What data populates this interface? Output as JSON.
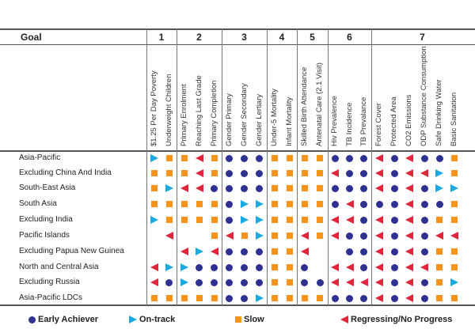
{
  "chart_data": {
    "type": "table",
    "header_label": "Goal",
    "goals": [
      {
        "number": "1",
        "indicators": [
          "$1.25 Per Day Poverty",
          "Underweight Children"
        ]
      },
      {
        "number": "2",
        "indicators": [
          "Primary Enrolment",
          "Reaching Last Grade",
          "Primary Completion"
        ]
      },
      {
        "number": "3",
        "indicators": [
          "Gender Primary",
          "Gender Secondary",
          "Gender Lertiary"
        ]
      },
      {
        "number": "4",
        "indicators": [
          "Under-5 Mortality",
          "Infant Mortality"
        ]
      },
      {
        "number": "5",
        "indicators": [
          "Skilled Birth Attendance",
          "Antenatal Care (2.1 Visit)"
        ]
      },
      {
        "number": "6",
        "indicators": [
          "Hiv Prevalence",
          "TB Incidence",
          "TB Prevalance"
        ]
      },
      {
        "number": "7",
        "indicators": [
          "Forest Cover",
          "Protected Area",
          "CO2 Emissions",
          "ODP Substance Consumption",
          "Safe Drinking Water",
          "Basic Sanitation"
        ]
      }
    ],
    "status_key": {
      "E": "Early Achiever",
      "O": "On-track",
      "S": "Slow",
      "R": "Regressing/No Progress",
      "_": "No data"
    },
    "rows": [
      {
        "region": "Asia-Pacific",
        "status": [
          "O",
          "S",
          "S",
          "R",
          "S",
          "E",
          "E",
          "E",
          "S",
          "S",
          "S",
          "S",
          "E",
          "E",
          "E",
          "R",
          "E",
          "R",
          "E",
          "E",
          "S"
        ]
      },
      {
        "region": "Excluding China And India",
        "status": [
          "S",
          "S",
          "S",
          "R",
          "S",
          "E",
          "E",
          "E",
          "S",
          "S",
          "S",
          "S",
          "R",
          "E",
          "E",
          "R",
          "E",
          "R",
          "R",
          "O",
          "S"
        ]
      },
      {
        "region": "South-East Asia",
        "status": [
          "S",
          "O",
          "R",
          "R",
          "E",
          "E",
          "E",
          "E",
          "S",
          "S",
          "S",
          "S",
          "E",
          "E",
          "E",
          "R",
          "E",
          "R",
          "E",
          "O",
          "O"
        ]
      },
      {
        "region": "South Asia",
        "status": [
          "S",
          "S",
          "S",
          "S",
          "S",
          "E",
          "O",
          "O",
          "S",
          "S",
          "S",
          "S",
          "E",
          "R",
          "E",
          "E",
          "E",
          "R",
          "E",
          "E",
          "S"
        ]
      },
      {
        "region": "Excluding India",
        "status": [
          "O",
          "S",
          "S",
          "S",
          "S",
          "E",
          "O",
          "O",
          "S",
          "S",
          "S",
          "S",
          "R",
          "R",
          "E",
          "R",
          "E",
          "R",
          "E",
          "S",
          "S"
        ]
      },
      {
        "region": "Pacific Islands",
        "status": [
          "_",
          "R",
          "_",
          "_",
          "S",
          "R",
          "S",
          "O",
          "S",
          "S",
          "R",
          "S",
          "R",
          "E",
          "E",
          "R",
          "E",
          "R",
          "E",
          "R",
          "R"
        ]
      },
      {
        "region": "Excluding Papua New Guinea",
        "status": [
          "_",
          "_",
          "R",
          "O",
          "R",
          "E",
          "E",
          "E",
          "S",
          "S",
          "R",
          "_",
          "_",
          "E",
          "E",
          "R",
          "E",
          "R",
          "E",
          "S",
          "S"
        ]
      },
      {
        "region": "North and Central Asia",
        "status": [
          "R",
          "O",
          "O",
          "E",
          "E",
          "E",
          "E",
          "E",
          "S",
          "S",
          "E",
          "_",
          "R",
          "R",
          "E",
          "R",
          "E",
          "R",
          "R",
          "S",
          "S"
        ]
      },
      {
        "region": "Excluding Russia",
        "status": [
          "R",
          "E",
          "O",
          "E",
          "E",
          "E",
          "E",
          "E",
          "S",
          "S",
          "E",
          "E",
          "R",
          "R",
          "R",
          "R",
          "E",
          "R",
          "E",
          "S",
          "O"
        ]
      },
      {
        "region": "Asia-Pacific LDCs",
        "status": [
          "S",
          "S",
          "S",
          "S",
          "S",
          "E",
          "E",
          "O",
          "S",
          "S",
          "S",
          "S",
          "E",
          "E",
          "E",
          "R",
          "E",
          "R",
          "E",
          "S",
          "S"
        ]
      }
    ],
    "colors": {
      "E": "#2e3192",
      "O": "#1ba9e1",
      "S": "#f7941d",
      "R": "#e0263a"
    }
  },
  "legend": [
    {
      "key": "E",
      "label": "Early Achiever"
    },
    {
      "key": "O",
      "label": "On-track"
    },
    {
      "key": "S",
      "label": "Slow"
    },
    {
      "key": "R",
      "label": "Regressing/No Progress"
    }
  ]
}
